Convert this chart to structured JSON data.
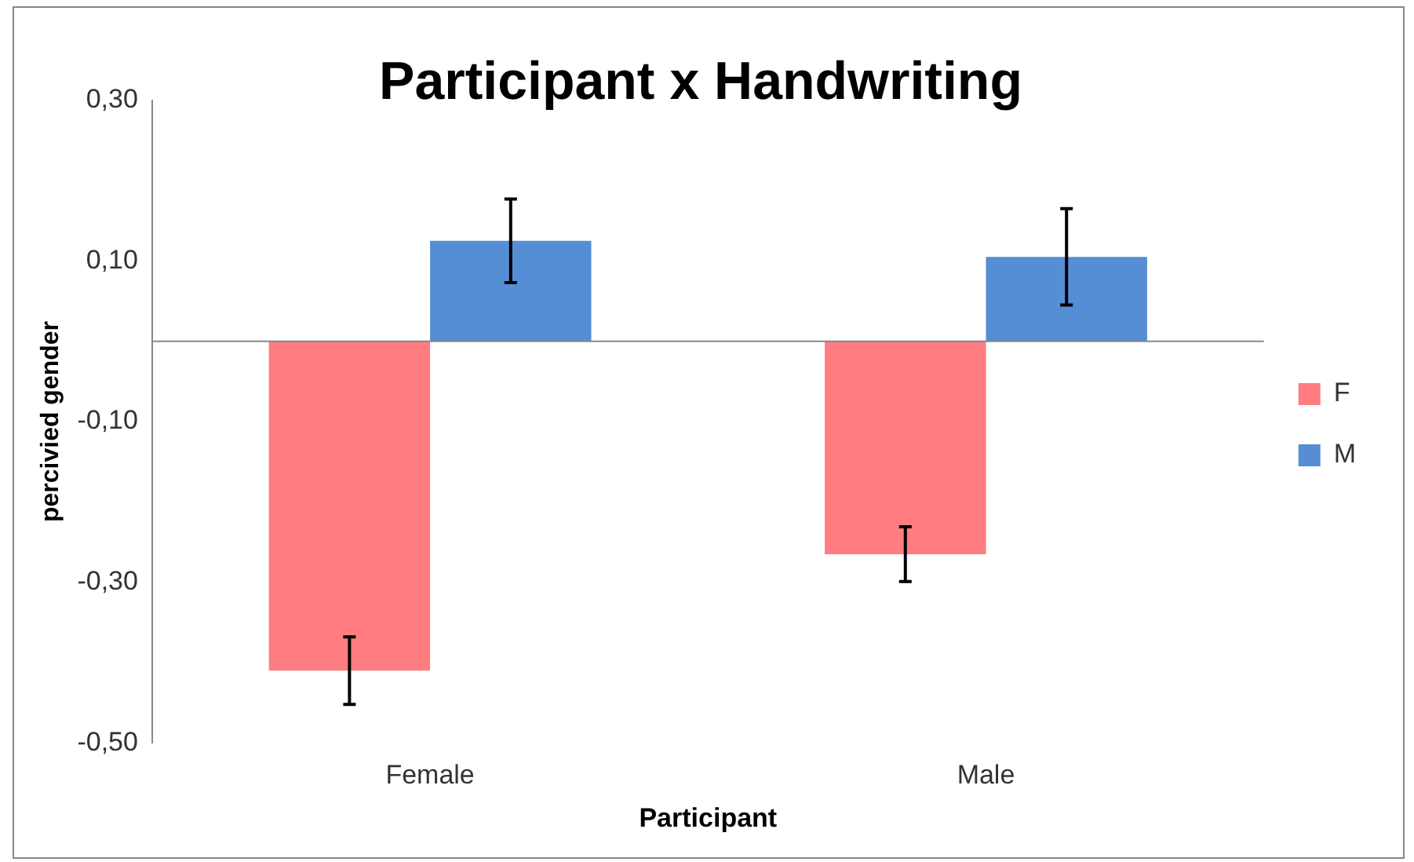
{
  "chart_data": {
    "type": "bar",
    "title": "Participant x Handwriting",
    "xlabel": "Participant",
    "ylabel": "percivied gender",
    "categories": [
      "Female",
      "Male"
    ],
    "series": [
      {
        "name": "F",
        "color": "#ff7c80",
        "values": [
          -0.41,
          -0.265
        ],
        "errors": [
          0.042,
          0.034
        ]
      },
      {
        "name": "M",
        "color": "#558ed5",
        "values": [
          0.125,
          0.105
        ],
        "errors": [
          0.052,
          0.06
        ]
      }
    ],
    "ylim": [
      -0.5,
      0.3
    ],
    "yticks": [
      {
        "value": -0.5,
        "label": "-0,50"
      },
      {
        "value": -0.3,
        "label": "-0,30"
      },
      {
        "value": -0.1,
        "label": "-0,10"
      },
      {
        "value": 0.1,
        "label": "0,10"
      },
      {
        "value": 0.3,
        "label": "0,30"
      }
    ],
    "grid": false,
    "legend": "right"
  }
}
